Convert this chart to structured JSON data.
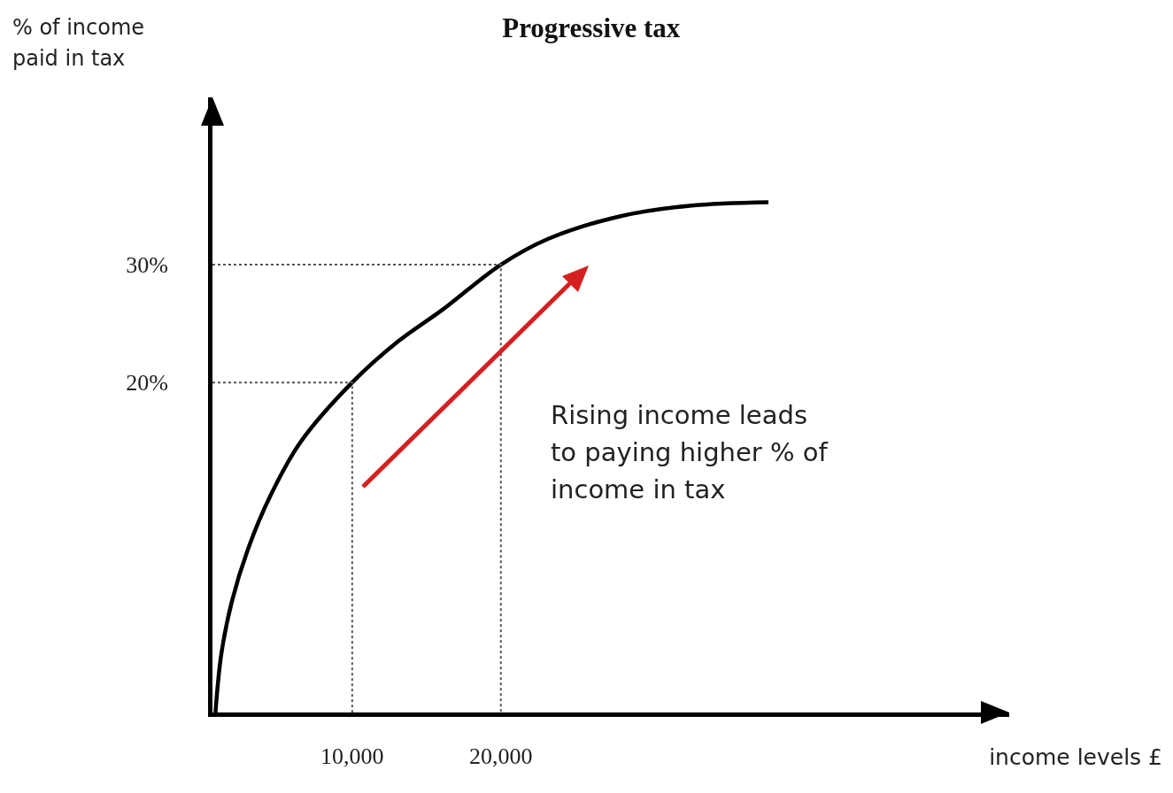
{
  "chart_data": {
    "type": "line",
    "title": "Progressive tax",
    "xlabel": "income levels £",
    "ylabel": "% of income\npaid in tax",
    "annotations": [
      "Rising income leads\nto paying higher % of\nincome in tax"
    ],
    "series": [
      {
        "color": "#000000",
        "line_style": "solid",
        "x": [
          800,
          1200,
          1900,
          3000,
          4500,
          6500,
          10000,
          13100,
          16100,
          20000,
          23200,
          28000,
          32700,
          38000
        ],
        "values": [
          -8,
          -3,
          1.4,
          5.9,
          10.4,
          14.9,
          20,
          23.5,
          26.2,
          30,
          32.2,
          34.1,
          35,
          35.3
        ]
      },
      {
        "color": "#555555",
        "line_style": "dotted",
        "x": [
          600,
          10000,
          10000
        ],
        "values": [
          20,
          20,
          -8
        ]
      },
      {
        "color": "#555555",
        "line_style": "dotted",
        "x": [
          600,
          20000,
          20000
        ],
        "values": [
          30,
          30,
          -8
        ]
      }
    ],
    "xlim": [
      600,
      54200
    ],
    "ylim": [
      -8,
      44.2
    ],
    "xticks": [
      {
        "value": 10000,
        "label": "10,000"
      },
      {
        "value": 20000,
        "label": "20,000"
      }
    ],
    "yticks": [
      {
        "value": 20,
        "label": "20%"
      },
      {
        "value": 30,
        "label": "30%"
      }
    ],
    "grid": false,
    "marker": "none"
  }
}
